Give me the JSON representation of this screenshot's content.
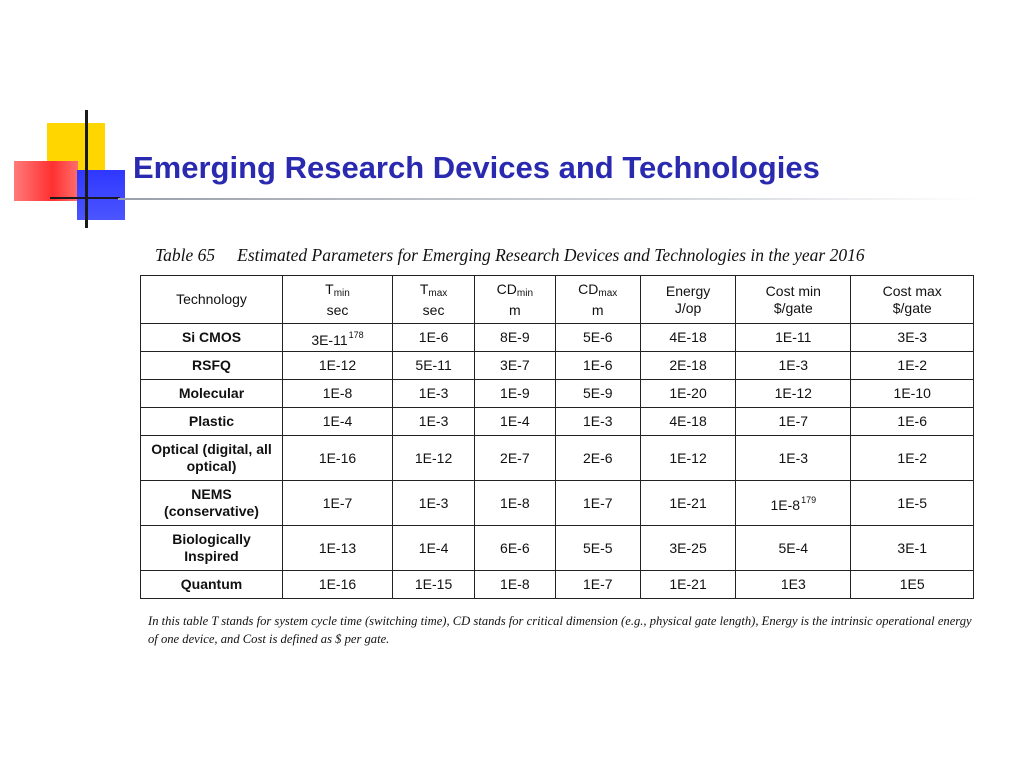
{
  "slide": {
    "title": "Emerging Research Devices and Technologies"
  },
  "table": {
    "caption_number": "Table 65",
    "caption_text": "Estimated Parameters for Emerging Research Devices and Technologies in the year 2016",
    "headers": [
      {
        "main": "Technology",
        "sub": "",
        "unit": ""
      },
      {
        "main": "T",
        "sub": "min",
        "unit": "sec"
      },
      {
        "main": "T",
        "sub": "max",
        "unit": "sec"
      },
      {
        "main": "CD",
        "sub": "min",
        "unit": "m"
      },
      {
        "main": "CD",
        "sub": "max",
        "unit": "m"
      },
      {
        "main": "Energy",
        "sub": "",
        "unit": "J/op"
      },
      {
        "main": "Cost min",
        "sub": "",
        "unit": "$/gate"
      },
      {
        "main": "Cost max",
        "sub": "",
        "unit": "$/gate"
      }
    ],
    "rows": [
      {
        "tech": "Si CMOS",
        "tmin": "3E-11",
        "tmin_ref": "178",
        "tmax": "1E-6",
        "cdmin": "8E-9",
        "cdmax": "5E-6",
        "energy": "4E-18",
        "costmin": "1E-11",
        "costmin_ref": "",
        "costmax": "3E-3"
      },
      {
        "tech": "RSFQ",
        "tmin": "1E-12",
        "tmin_ref": "",
        "tmax": "5E-11",
        "cdmin": "3E-7",
        "cdmax": "1E-6",
        "energy": "2E-18",
        "costmin": "1E-3",
        "costmin_ref": "",
        "costmax": "1E-2"
      },
      {
        "tech": "Molecular",
        "tmin": "1E-8",
        "tmin_ref": "",
        "tmax": "1E-3",
        "cdmin": "1E-9",
        "cdmax": "5E-9",
        "energy": "1E-20",
        "costmin": "1E-12",
        "costmin_ref": "",
        "costmax": "1E-10"
      },
      {
        "tech": "Plastic",
        "tmin": "1E-4",
        "tmin_ref": "",
        "tmax": "1E-3",
        "cdmin": "1E-4",
        "cdmax": "1E-3",
        "energy": "4E-18",
        "costmin": "1E-7",
        "costmin_ref": "",
        "costmax": "1E-6"
      },
      {
        "tech": "Optical (digital, all optical)",
        "tmin": "1E-16",
        "tmin_ref": "",
        "tmax": "1E-12",
        "cdmin": "2E-7",
        "cdmax": "2E-6",
        "energy": "1E-12",
        "costmin": "1E-3",
        "costmin_ref": "",
        "costmax": "1E-2"
      },
      {
        "tech": "NEMS (conservative)",
        "tmin": "1E-7",
        "tmin_ref": "",
        "tmax": "1E-3",
        "cdmin": "1E-8",
        "cdmax": "1E-7",
        "energy": "1E-21",
        "costmin": "1E-8",
        "costmin_ref": "179",
        "costmax": "1E-5"
      },
      {
        "tech": "Biologically Inspired",
        "tmin": "1E-13",
        "tmin_ref": "",
        "tmax": "1E-4",
        "cdmin": "6E-6",
        "cdmax": "5E-5",
        "energy": "3E-25",
        "costmin": "5E-4",
        "costmin_ref": "",
        "costmax": "3E-1"
      },
      {
        "tech": "Quantum",
        "tmin": "1E-16",
        "tmin_ref": "",
        "tmax": "1E-15",
        "cdmin": "1E-8",
        "cdmax": "1E-7",
        "energy": "1E-21",
        "costmin": "1E3",
        "costmin_ref": "",
        "costmax": "1E5"
      }
    ],
    "footnote": "In this table T stands for system cycle time (switching time), CD stands for critical dimension (e.g., physical gate length), Energy is the intrinsic operational energy of one device, and Cost is defined as $ per gate."
  },
  "colors": {
    "title": "#2a2ab0",
    "ornament_yellow": "#ffd600",
    "ornament_red": "#ff3030",
    "ornament_blue": "#2f37ff"
  }
}
